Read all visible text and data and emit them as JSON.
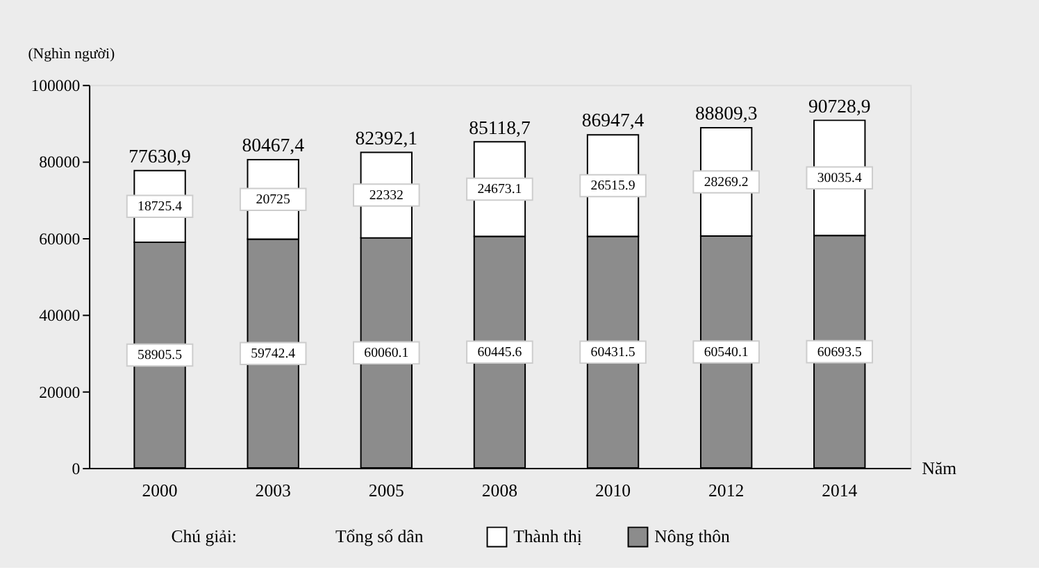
{
  "chart_data": {
    "type": "bar",
    "stacked": true,
    "ylabel": "(Nghìn người)",
    "xlabel": "Năm",
    "legend_title": "Chú giải:",
    "categories": [
      "2000",
      "2003",
      "2005",
      "2008",
      "2010",
      "2012",
      "2014"
    ],
    "series": [
      {
        "name": "Nông thôn",
        "color": "#8c8c8c",
        "values": [
          58905.5,
          59742.4,
          60060.1,
          60445.6,
          60431.5,
          60540.1,
          60693.5
        ]
      },
      {
        "name": "Thành thị",
        "color": "#ffffff",
        "values": [
          18725.4,
          20725,
          22332,
          24673.1,
          26515.9,
          28269.2,
          30035.4
        ]
      }
    ],
    "totals": [
      "77630,9",
      "80467,4",
      "82392,1",
      "85118,7",
      "86947,4",
      "88809,3",
      "90728,9"
    ],
    "annotations": [
      "Tổng số dân"
    ],
    "data_labels": true,
    "legend": "bottom",
    "grid": false,
    "ylim": [
      0,
      100000
    ],
    "yticks": [
      0,
      20000,
      40000,
      60000,
      80000,
      100000
    ]
  }
}
